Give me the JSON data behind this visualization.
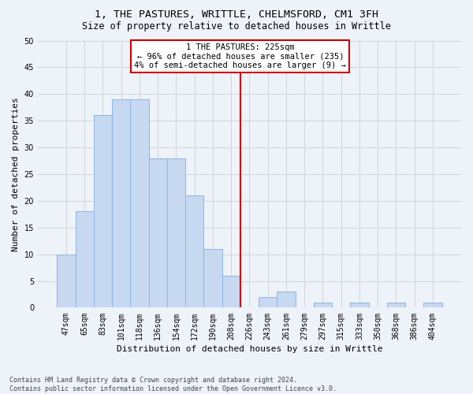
{
  "title_line1": "1, THE PASTURES, WRITTLE, CHELMSFORD, CM1 3FH",
  "title_line2": "Size of property relative to detached houses in Writtle",
  "xlabel": "Distribution of detached houses by size in Writtle",
  "ylabel": "Number of detached properties",
  "footer_line1": "Contains HM Land Registry data © Crown copyright and database right 2024.",
  "footer_line2": "Contains public sector information licensed under the Open Government Licence v3.0.",
  "categories": [
    "47sqm",
    "65sqm",
    "83sqm",
    "101sqm",
    "118sqm",
    "136sqm",
    "154sqm",
    "172sqm",
    "190sqm",
    "208sqm",
    "226sqm",
    "243sqm",
    "261sqm",
    "279sqm",
    "297sqm",
    "315sqm",
    "333sqm",
    "350sqm",
    "368sqm",
    "386sqm",
    "404sqm"
  ],
  "values": [
    10,
    18,
    36,
    39,
    39,
    28,
    28,
    21,
    11,
    6,
    0,
    2,
    3,
    0,
    1,
    0,
    1,
    0,
    1,
    0,
    1
  ],
  "bar_color": "#c6d9f1",
  "bar_edge_color": "#8db4e2",
  "vline_index": 10,
  "legend_text_line1": "1 THE PASTURES: 225sqm",
  "legend_text_line2": "← 96% of detached houses are smaller (235)",
  "legend_text_line3": "4% of semi-detached houses are larger (9) →",
  "legend_box_color": "#cc0000",
  "vline_color": "#cc0000",
  "ylim": [
    0,
    50
  ],
  "yticks": [
    0,
    5,
    10,
    15,
    20,
    25,
    30,
    35,
    40,
    45,
    50
  ],
  "grid_color": "#d0d0d0",
  "bg_color": "#eef2f9",
  "title1_fontsize": 9.5,
  "title2_fontsize": 8.5,
  "xlabel_fontsize": 8.0,
  "ylabel_fontsize": 8.0,
  "tick_fontsize": 7.0,
  "footer_fontsize": 6.0,
  "annot_fontsize": 7.5
}
